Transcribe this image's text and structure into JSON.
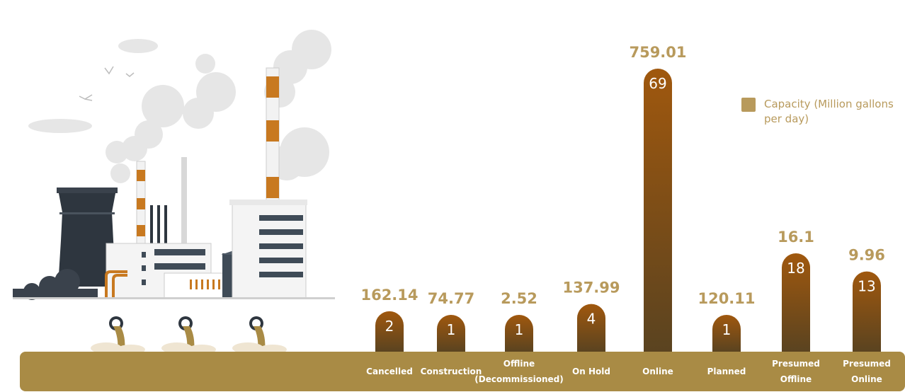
{
  "chart_data": {
    "type": "bar",
    "categories": [
      "Cancelled",
      "Construction",
      "Offline (Decommissioned)",
      "On Hold",
      "Online",
      "Planned",
      "Presumed Offline",
      "Presumed Online"
    ],
    "category_lines": [
      [
        "Cancelled"
      ],
      [
        "Construction"
      ],
      [
        "Offline",
        "(Decommissioned)"
      ],
      [
        "On Hold"
      ],
      [
        "Online"
      ],
      [
        "Planned"
      ],
      [
        "Presumed",
        "Offline"
      ],
      [
        "Presumed",
        "Online"
      ]
    ],
    "counts": [
      2,
      1,
      1,
      4,
      69,
      1,
      18,
      13
    ],
    "series": [
      {
        "name": "Capacity (Million gallons per day)",
        "values": [
          162.14,
          74.77,
          2.52,
          137.99,
          759.01,
          120.11,
          16.1,
          9.96
        ]
      }
    ],
    "count_max": 69,
    "legend_position": "top-right",
    "colors": {
      "bar_top": "#a0580e",
      "bar_bottom": "#5a4320",
      "value_label": "#b89a5c",
      "ground": "#a98b45",
      "category_label": "#ffffff"
    }
  },
  "legend": {
    "label_line1": "Capacity (Million gallons",
    "label_line2": "per day)"
  }
}
